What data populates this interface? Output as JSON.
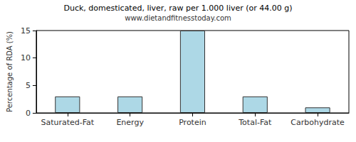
{
  "chart_data": {
    "type": "bar",
    "title": "Duck, domesticated, liver, raw per 1.000 liver (or 44.00 g)",
    "subtitle": "www.dietandfitnesstoday.com",
    "y_label": "Percentage of RDA (%)",
    "categories": [
      "Saturated-Fat",
      "Energy",
      "Protein",
      "Total-Fat",
      "Carbohydrate"
    ],
    "values": [
      3,
      3,
      15,
      3,
      1
    ],
    "color": "#add8e6",
    "ylim": [
      0,
      15
    ],
    "yticks": [
      0,
      5,
      10,
      15
    ],
    "grid": false
  }
}
